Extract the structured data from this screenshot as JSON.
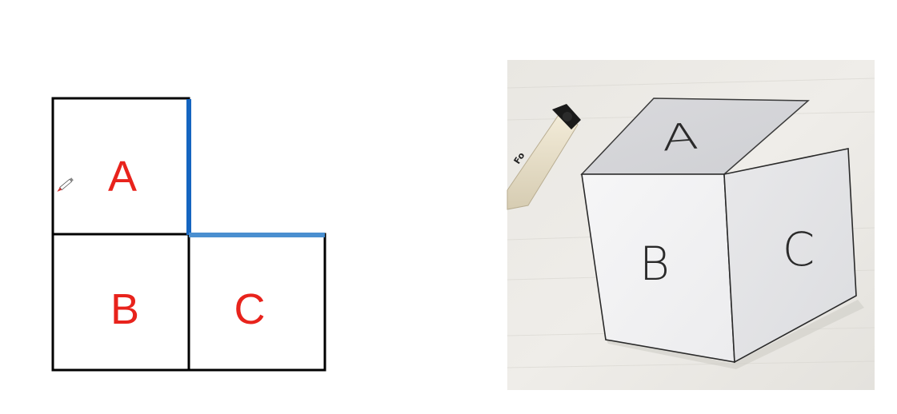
{
  "net": {
    "squares": [
      {
        "id": "A",
        "label": "A"
      },
      {
        "id": "B",
        "label": "B"
      },
      {
        "id": "C",
        "label": "C"
      }
    ],
    "label_color": "#e8231c",
    "outline_color": "#000000",
    "highlight_vertical_color": "#1565c0",
    "highlight_horizontal_color": "#4a8fd0"
  },
  "photo": {
    "faces": {
      "top": "A",
      "left": "B",
      "right": "C"
    },
    "marker_brand": "Fo"
  },
  "pencil_cursor_color": "#d32f2f"
}
